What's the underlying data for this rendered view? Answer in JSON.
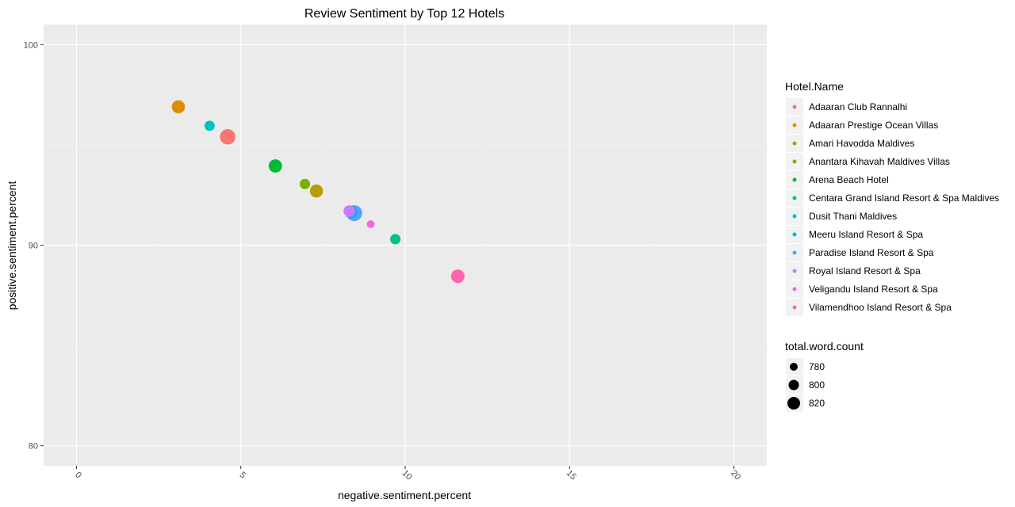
{
  "chart_data": {
    "type": "scatter",
    "title": "Review Sentiment by Top 12 Hotels",
    "xlabel": "negative.sentiment.percent",
    "ylabel": "positive.sentiment.percent",
    "xlim": [
      -1,
      21
    ],
    "ylim": [
      79,
      101
    ],
    "xticks": [
      0,
      5,
      10,
      15,
      20
    ],
    "xtick_labels": [
      "0",
      "5",
      "10",
      "15",
      "20"
    ],
    "yticks": [
      80,
      90,
      100
    ],
    "ytick_labels": [
      "80",
      "90",
      "100"
    ],
    "grid": true,
    "background": "#ebebeb",
    "color_legend": {
      "title": "Hotel.Name",
      "position": "right",
      "entries": [
        {
          "label": "Adaaran Club Rannalhi",
          "color": "#F8766D"
        },
        {
          "label": "Adaaran Prestige Ocean Villas",
          "color": "#DE8C00"
        },
        {
          "label": "Amari Havodda Maldives",
          "color": "#B79F00"
        },
        {
          "label": "Anantara Kihavah Maldives Villas",
          "color": "#7CAE00"
        },
        {
          "label": "Arena Beach Hotel",
          "color": "#00BA38"
        },
        {
          "label": "Centara Grand Island Resort & Spa Maldives",
          "color": "#00C08B"
        },
        {
          "label": "Dusit Thani Maldives",
          "color": "#00BFC4"
        },
        {
          "label": "Meeru Island Resort & Spa",
          "color": "#00B4F0"
        },
        {
          "label": "Paradise Island Resort & Spa",
          "color": "#619CFF"
        },
        {
          "label": "Royal Island Resort & Spa",
          "color": "#C77CFF"
        },
        {
          "label": "Veligandu Island Resort & Spa",
          "color": "#F564E3"
        },
        {
          "label": "Vilamendhoo Island Resort & Spa",
          "color": "#FF64B0"
        }
      ]
    },
    "size_legend": {
      "title": "total.word.count",
      "position": "right",
      "entries": [
        {
          "label": "780",
          "value": 780
        },
        {
          "label": "800",
          "value": 800
        },
        {
          "label": "820",
          "value": 820
        }
      ]
    },
    "points": [
      {
        "hotel": "Adaaran Club Rannalhi",
        "x": 4.6,
        "y": 95.4,
        "size": 830
      },
      {
        "hotel": "Adaaran Prestige Ocean Villas",
        "x": 3.1,
        "y": 96.9,
        "size": 806
      },
      {
        "hotel": "Amari Havodda Maldives",
        "x": 7.3,
        "y": 92.7,
        "size": 806
      },
      {
        "hotel": "Anantara Kihavah Maldives Villas",
        "x": 6.95,
        "y": 93.05,
        "size": 783
      },
      {
        "hotel": "Arena Beach Hotel",
        "x": 6.05,
        "y": 93.95,
        "size": 808
      },
      {
        "hotel": "Centara Grand Island Resort & Spa Maldives",
        "x": 9.7,
        "y": 90.3,
        "size": 783
      },
      {
        "hotel": "Dusit Thani Maldives",
        "x": 4.05,
        "y": 95.95,
        "size": 782
      },
      {
        "hotel": "Meeru Island Resort & Spa",
        "x": 8.35,
        "y": 91.65,
        "size": 800
      },
      {
        "hotel": "Paradise Island Resort & Spa",
        "x": 8.45,
        "y": 91.6,
        "size": 836
      },
      {
        "hotel": "Royal Island Resort & Spa",
        "x": 8.3,
        "y": 91.7,
        "size": 792
      },
      {
        "hotel": "Veligandu Island Resort & Spa",
        "x": 8.95,
        "y": 91.05,
        "size": 768
      },
      {
        "hotel": "Vilamendhoo Island Resort & Spa",
        "x": 11.6,
        "y": 88.45,
        "size": 810
      }
    ]
  }
}
